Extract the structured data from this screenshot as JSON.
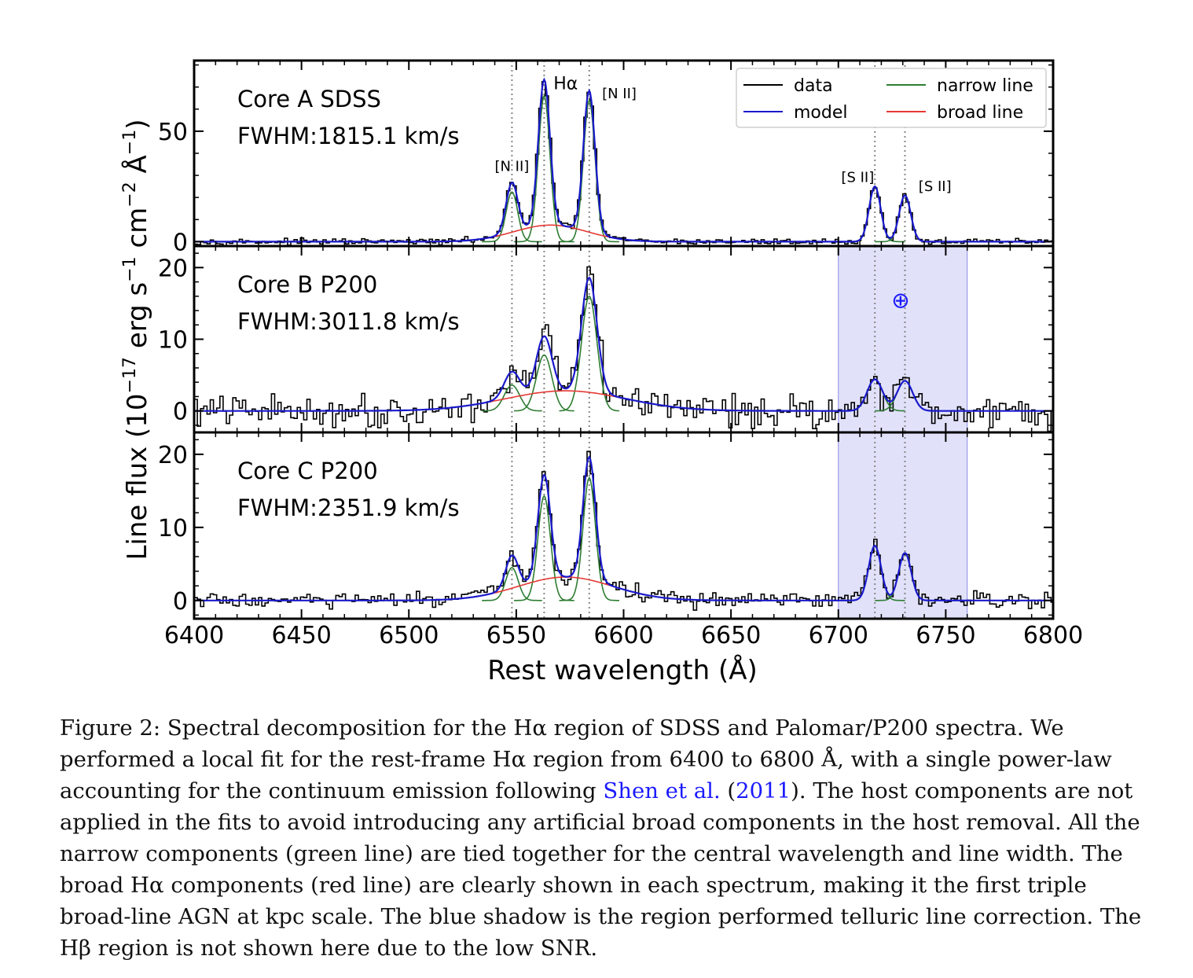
{
  "chart_data": {
    "type": "line",
    "xlabel": "Rest wavelength (Å)",
    "ylabel": "Line flux (10⁻¹⁷ erg s⁻¹ cm⁻² Å⁻¹)",
    "ylabel_parts": {
      "a": "Line flux (10",
      "e1": "−17",
      "b": " erg s",
      "e2": "−1",
      "c": " cm",
      "e3": "−2",
      "d": " Å",
      "e4": "−1",
      "f": ")"
    },
    "xlim": [
      6400,
      6800
    ],
    "xticks": [
      6400,
      6450,
      6500,
      6550,
      6600,
      6650,
      6700,
      6750,
      6800
    ],
    "xtick_labels": [
      "6400",
      "6450",
      "6500",
      "6550",
      "6600",
      "6650",
      "6700",
      "6750",
      "6800"
    ],
    "line_markers": [
      6548.0,
      6563.0,
      6584.0,
      6717.0,
      6731.0
    ],
    "legend": {
      "position": "top-right",
      "entries": [
        {
          "label": "data",
          "color": "#000000"
        },
        {
          "label": "model",
          "color": "#1a1acc"
        },
        {
          "label": "narrow line",
          "color": "#2e7d32"
        },
        {
          "label": "broad line",
          "color": "#e53935"
        }
      ]
    },
    "panels": [
      {
        "name": "Core A SDSS",
        "fwhm_label": "FWHM:1815.1 km/s",
        "ylim": [
          -2,
          82
        ],
        "yticks": [
          0,
          50
        ],
        "ytick_labels": [
          "0",
          "50"
        ],
        "narrow_amplitudes": {
          "6548": 22.5,
          "6563": 66,
          "6584": 64,
          "6717": 25,
          "6731": 21
        },
        "narrow_sigma": 2.7,
        "broad": {
          "center": 6566,
          "amplitude": 7.5,
          "sigma": 17
        },
        "noise": 0.9,
        "line_labels": [
          {
            "text": "[N II]",
            "x": 6548,
            "y": 32
          },
          {
            "text": "Hα",
            "x": 6573,
            "y": 69
          },
          {
            "text": "[N II]",
            "x": 6598,
            "y": 65
          },
          {
            "text": "[S II]",
            "x": 6709,
            "y": 27
          },
          {
            "text": "[S II]",
            "x": 6745,
            "y": 23
          }
        ],
        "telluric": null
      },
      {
        "name": "Core B P200",
        "fwhm_label": "FWHM:3011.8 km/s",
        "ylim": [
          -3,
          23
        ],
        "yticks": [
          0,
          10,
          20
        ],
        "ytick_labels": [
          "0",
          "10",
          "20"
        ],
        "narrow_amplitudes": {
          "6548": 3.6,
          "6563": 7.8,
          "6584": 16,
          "6717": 4.4,
          "6731": 4.2
        },
        "narrow_sigma": 3.6,
        "broad": {
          "center": 6573,
          "amplitude": 2.8,
          "sigma": 28
        },
        "noise": 1.6,
        "line_labels": [],
        "telluric": {
          "from": 6700,
          "to": 6760,
          "symbol": "⊕",
          "symbol_x": 6729,
          "symbol_y": 15.5
        }
      },
      {
        "name": "Core C P200",
        "fwhm_label": "FWHM:2351.9 km/s",
        "ylim": [
          -2.5,
          23
        ],
        "yticks": [
          0,
          10,
          20
        ],
        "ytick_labels": [
          "0",
          "10",
          "20"
        ],
        "narrow_amplitudes": {
          "6548": 4.5,
          "6563": 14.3,
          "6584": 16.8,
          "6717": 7.5,
          "6731": 6.5
        },
        "narrow_sigma": 2.9,
        "broad": {
          "center": 6573,
          "amplitude": 3.2,
          "sigma": 22
        },
        "noise": 0.8,
        "line_labels": [],
        "telluric": {
          "from": 6700,
          "to": 6760,
          "symbol": "",
          "symbol_x": 0,
          "symbol_y": 0
        }
      }
    ]
  },
  "caption": {
    "part1": "Figure 2: Spectral decomposition for the Hα region of SDSS and Palomar/P200 spectra. We performed a local fit for the rest-frame Hα region from 6400 to 6800 Å, with a single power-law accounting for the continuum emission following ",
    "cite_name": "Shen et al.",
    "open_paren": " (",
    "cite_year": "2011",
    "part2": "). The host components are not applied in the fits to avoid introducing any artificial broad components in the host removal. All the narrow components (green line) are tied together for the central wavelength and line width. The broad Hα components (red line) are clearly shown in each spectrum, making it the first triple broad-line AGN at kpc scale. The blue shadow is the region performed telluric line correction. The Hβ region is not shown here due to the low SNR."
  }
}
